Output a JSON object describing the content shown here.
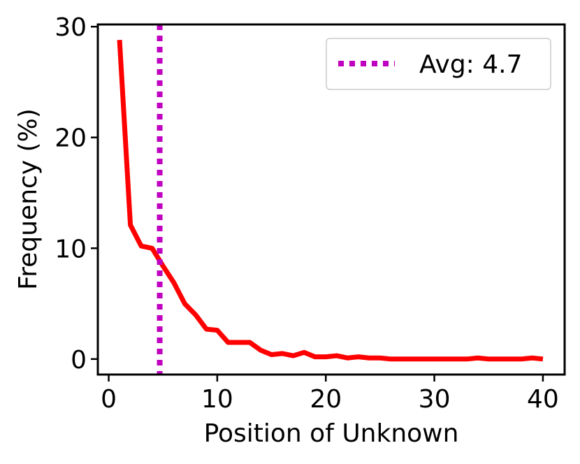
{
  "chart_data": {
    "type": "line",
    "xlabel": "Position of Unknown",
    "ylabel": "Frequency (%)",
    "xlim": [
      -1,
      42
    ],
    "ylim": [
      -1.4,
      30.2
    ],
    "x_ticks": [
      0,
      10,
      20,
      30,
      40
    ],
    "y_ticks": [
      0,
      10,
      20,
      30
    ],
    "grid": false,
    "legend_position": "top-right",
    "series": [
      {
        "color": "#ff0000",
        "x": [
          1,
          2,
          3,
          4,
          5,
          6,
          7,
          8,
          9,
          10,
          11,
          12,
          13,
          14,
          15,
          16,
          17,
          18,
          19,
          20,
          21,
          22,
          23,
          24,
          25,
          26,
          27,
          28,
          29,
          30,
          31,
          32,
          33,
          34,
          35,
          36,
          37,
          38,
          39,
          40
        ],
        "y": [
          28.8,
          12.1,
          10.2,
          10.0,
          8.4,
          6.9,
          5.0,
          4.0,
          2.7,
          2.6,
          1.5,
          1.5,
          1.5,
          0.8,
          0.4,
          0.5,
          0.3,
          0.6,
          0.2,
          0.2,
          0.3,
          0.1,
          0.2,
          0.1,
          0.1,
          0.0,
          0.0,
          0.0,
          0.0,
          0.0,
          0.0,
          0.0,
          0.0,
          0.1,
          0.0,
          0.0,
          0.0,
          0.0,
          0.1,
          0.0
        ]
      }
    ],
    "annotations": [
      {
        "type": "vertical-line",
        "x": 4.7,
        "label": "Avg: 4.7",
        "style": "dotted",
        "color": "#c000c0"
      }
    ]
  }
}
